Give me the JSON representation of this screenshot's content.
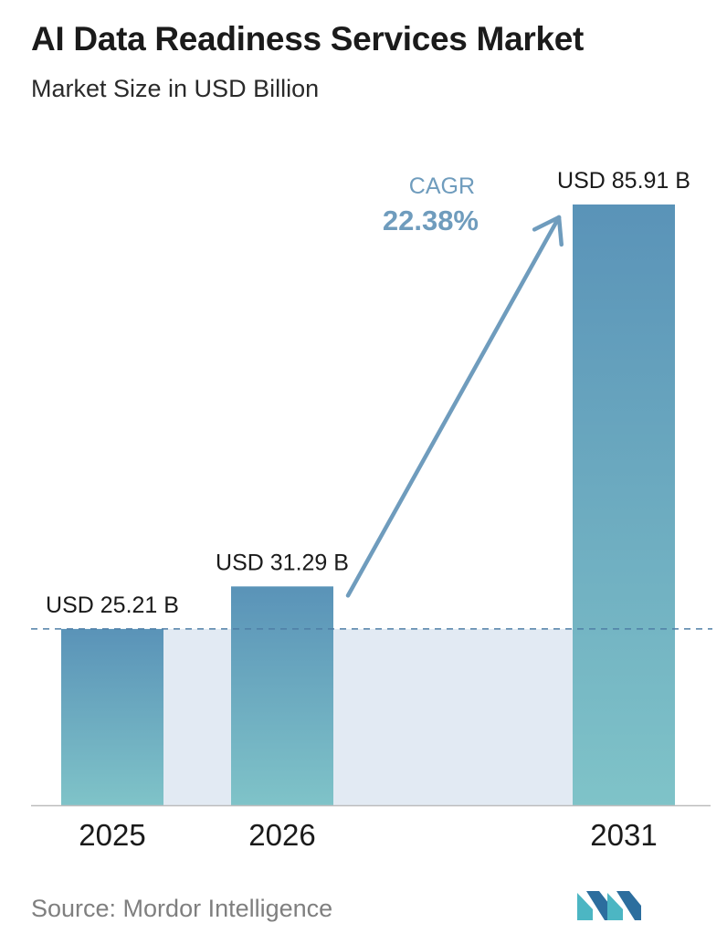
{
  "header": {
    "title": "AI Data Readiness Services Market",
    "subtitle": "Market Size in USD Billion"
  },
  "footer": {
    "source": "Source: Mordor Intelligence",
    "logo_icon": "mordor-intelligence-logo"
  },
  "colors": {
    "bar_top": "#5a93b8",
    "bar_bottom": "#7fc3c8",
    "band": "#e2eaf3",
    "dashed_line": "#4f7fa6",
    "cagr": "#6f9cbd",
    "axis": "#bdbdbd",
    "logo_teal": "#4cb6c3",
    "logo_blue": "#2c6e9e"
  },
  "cagr": {
    "label": "CAGR",
    "value": "22.38%"
  },
  "chart_data": {
    "type": "bar",
    "title": "AI Data Readiness Services Market",
    "subtitle": "Market Size in USD Billion",
    "categories": [
      "2025",
      "2026",
      "2031"
    ],
    "values": [
      25.21,
      31.29,
      85.91
    ],
    "data_labels": [
      "USD 25.21 B",
      "USD 31.29 B",
      "USD 85.91 B"
    ],
    "ylim": [
      0,
      85.91
    ],
    "xlabel": "",
    "ylabel": "",
    "grid": false,
    "reference_line": "dashed line at 2025 value",
    "annotation": "CAGR 22.38%"
  }
}
